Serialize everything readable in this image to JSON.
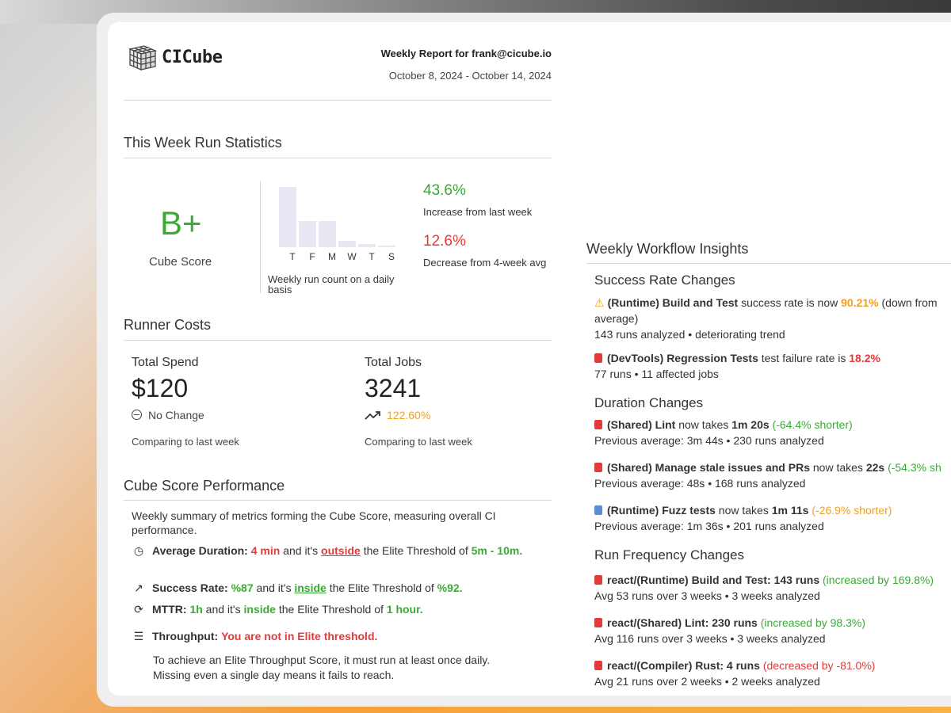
{
  "header": {
    "brand": "CICube",
    "report_title": "Weekly Report for frank@cicube.io",
    "date_range": "October 8, 2024 - October 14, 2024"
  },
  "run_statistics": {
    "title": "This Week Run Statistics",
    "grade": "B+",
    "grade_label": "Cube Score",
    "chart_caption": "Weekly run count on a daily basis",
    "increase_pct": "43.6%",
    "increase_label": "Increase from last week",
    "decrease_pct": "12.6%",
    "decrease_label": "Decrease from 4-week avg"
  },
  "chart_data": {
    "type": "bar",
    "categories": [
      "T",
      "F",
      "M",
      "W",
      "T",
      "S"
    ],
    "values": [
      100,
      44,
      44,
      11,
      5,
      2
    ],
    "title": "",
    "xlabel": "",
    "ylabel": "",
    "grid": false
  },
  "runner_costs": {
    "title": "Runner Costs",
    "spend_label": "Total Spend",
    "spend_value": "$120",
    "spend_change": "No Change",
    "spend_compare": "Comparing to last week",
    "jobs_label": "Total Jobs",
    "jobs_value": "3241",
    "jobs_change": "122.60%",
    "jobs_compare": "Comparing to last week"
  },
  "cube_score": {
    "title": "Cube Score Performance",
    "summary": "Weekly summary of metrics forming the Cube Score, measuring overall CI performance.",
    "avg_duration": {
      "label": "Average Duration:",
      "value": "4 min",
      "mid": "and it's",
      "status": "outside",
      "tail": "the Elite Threshold of",
      "threshold": "5m - 10m."
    },
    "success_rate": {
      "label": "Success Rate:",
      "value": "%87",
      "mid": "and it's",
      "status": "inside",
      "tail": "the Elite Threshold of",
      "threshold": "%92."
    },
    "mttr": {
      "label": "MTTR:",
      "value": "1h",
      "mid": "and it's",
      "status": "inside",
      "tail": "the Elite Threshold of",
      "threshold": "1 hour."
    },
    "throughput": {
      "label": "Throughput:",
      "value": "You are not in Elite threshold.",
      "note": "To achieve an Elite Throughput Score, it must run at least once daily. Missing even a single day means it fails to reach."
    }
  },
  "insights": {
    "title": "Weekly Workflow Insights",
    "success_title": "Success Rate Changes",
    "s1_name": "(Runtime) Build and Test",
    "s1_text": "success rate is now",
    "s1_value": "90.21%",
    "s1_tail": "(down from",
    "s1_tail2": "average)",
    "s1_sub": "143 runs analyzed • deteriorating trend",
    "s2_name": "(DevTools) Regression Tests",
    "s2_text": "test failure rate is",
    "s2_value": "18.2%",
    "s2_sub": "77 runs • 11 affected jobs",
    "duration_title": "Duration Changes",
    "d1_name": "(Shared) Lint",
    "d1_text": "now takes",
    "d1_value": "1m 20s",
    "d1_change": "(-64.4% shorter)",
    "d1_sub": "Previous average: 3m 44s • 230 runs analyzed",
    "d2_name": "(Shared) Manage stale issues and PRs",
    "d2_text": "now takes",
    "d2_value": "22s",
    "d2_change": "(-54.3% sh",
    "d2_sub": "Previous average: 48s • 168 runs analyzed",
    "d3_name": "(Runtime) Fuzz tests",
    "d3_text": "now takes",
    "d3_value": "1m 11s",
    "d3_change": "(-26.9% shorter)",
    "d3_sub": "Previous average: 1m 36s • 201 runs analyzed",
    "freq_title": "Run Frequency Changes",
    "f1_name": "react/(Runtime) Build and Test: 143 runs",
    "f1_change": "(increased by 169.8%)",
    "f1_sub": "Avg 53 runs over 3 weeks • 3 weeks analyzed",
    "f2_name": "react/(Shared) Lint: 230 runs",
    "f2_change": "(increased by 98.3%)",
    "f2_sub": "Avg 116 runs over 3 weeks • 3 weeks analyzed",
    "f3_name": "react/(Compiler) Rust: 4 runs",
    "f3_change": "(decreased by -81.0%)",
    "f3_sub": "Avg 21 runs over 2 weeks • 2 weeks analyzed"
  }
}
